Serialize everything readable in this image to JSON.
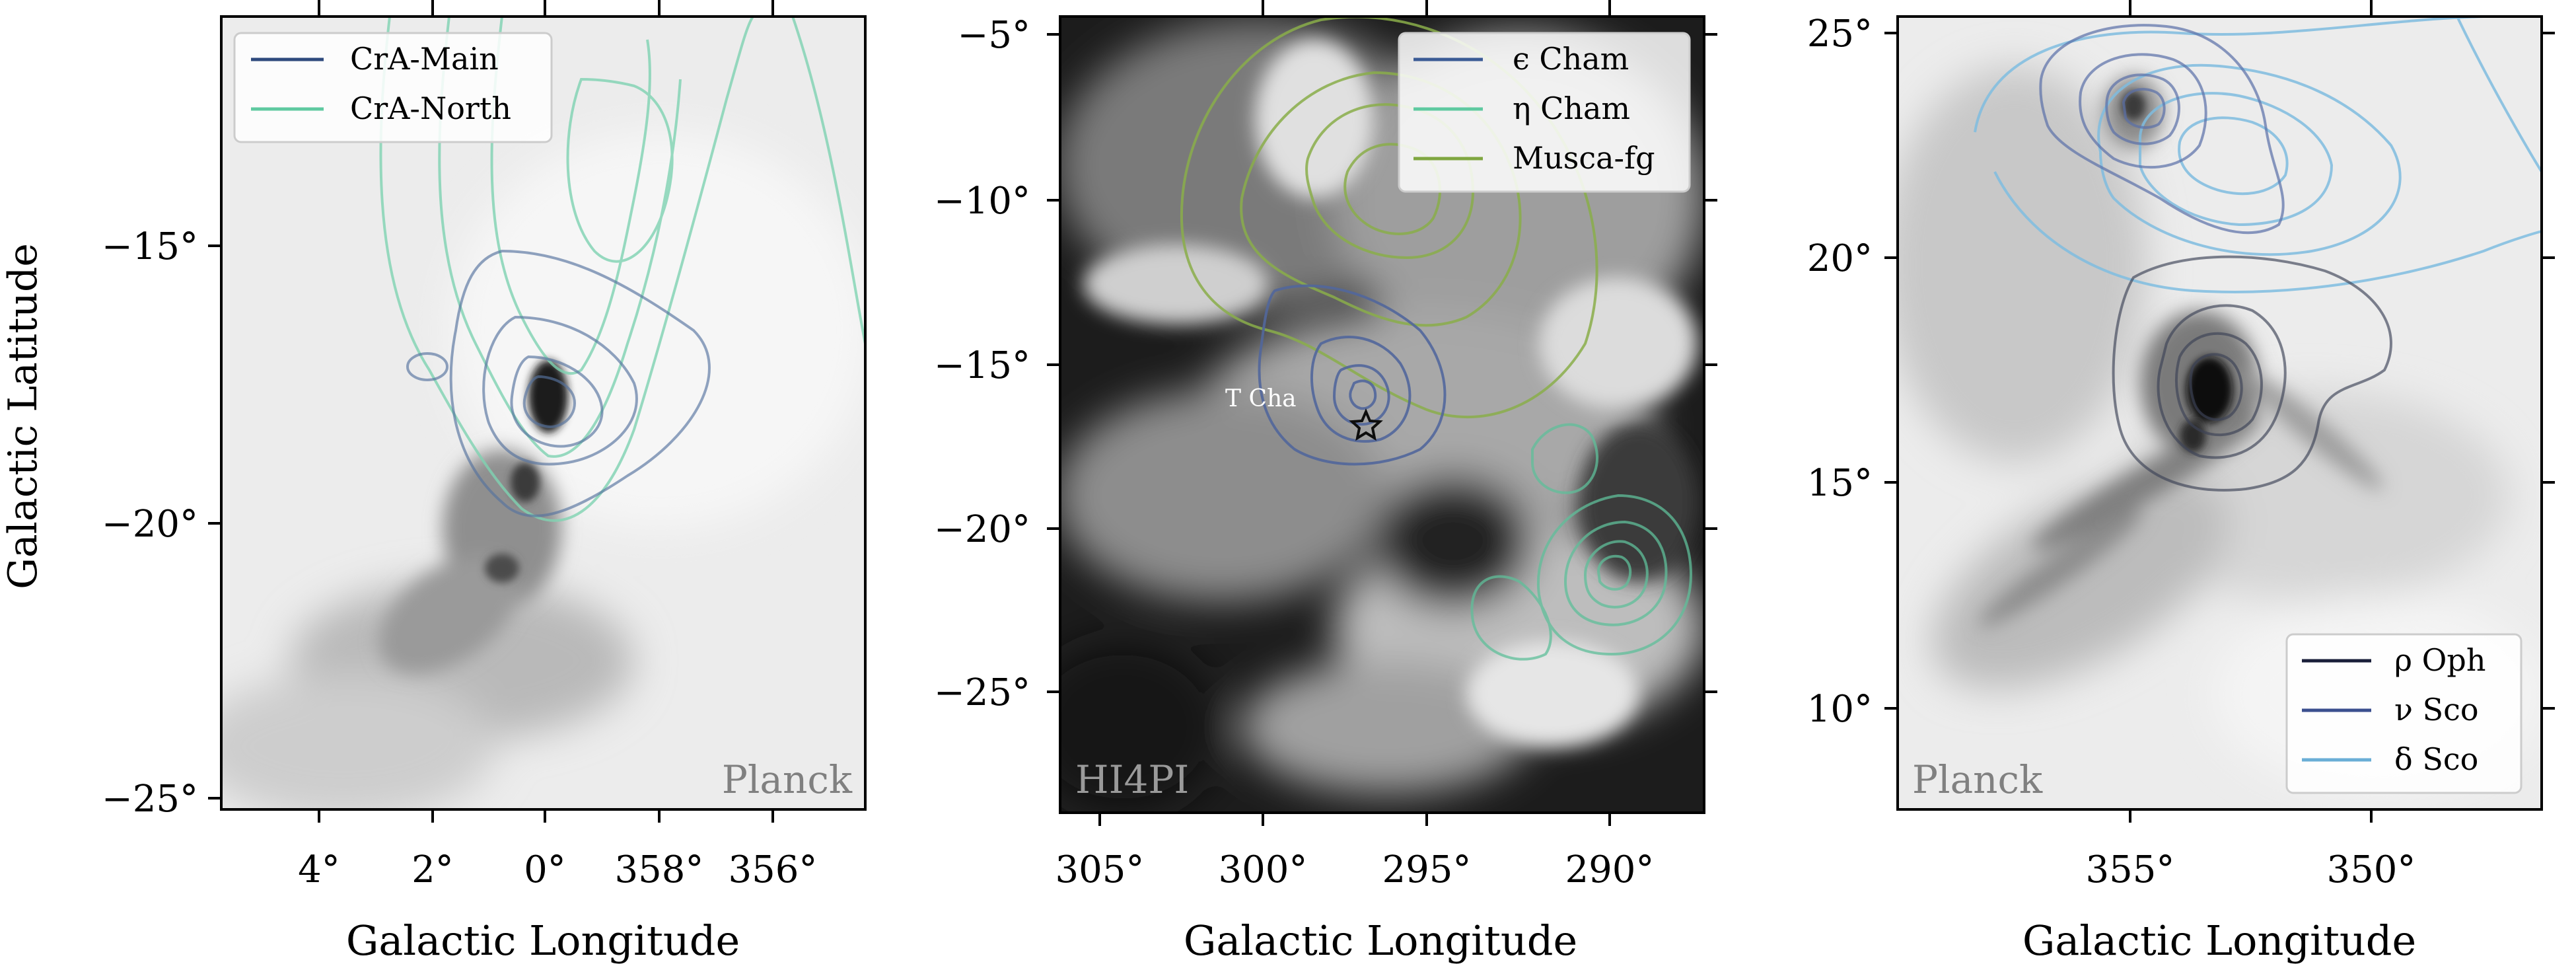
{
  "figure": {
    "y_axis_label": "Galactic Latitude",
    "panels": [
      {
        "xlabel": "Galactic Longitude",
        "x_ticks": [
          "4°",
          "2°",
          "0°",
          "358°",
          "356°"
        ],
        "y_ticks": [
          "−15°",
          "−20°",
          "−25°"
        ],
        "map_label": "Planck",
        "background": "planck-dust-light",
        "legend": [
          {
            "label": "CrA-Main",
            "color": "#2e4a7d"
          },
          {
            "label": "CrA-North",
            "color": "#5ec9a0"
          }
        ]
      },
      {
        "xlabel": "Galactic Longitude",
        "x_ticks": [
          "305°",
          "300°",
          "295°",
          "290°"
        ],
        "y_ticks": [
          "−5°",
          "−10°",
          "−15°",
          "−20°",
          "−25°"
        ],
        "map_label": "HI4PI",
        "background": "hi4pi-dark",
        "annotation": "T Cha",
        "legend": [
          {
            "label": "ϵ Cham",
            "color": "#3b5b95"
          },
          {
            "label": "η Cham",
            "color": "#5ec9a0"
          },
          {
            "label": "Musca-fg",
            "color": "#7fa640"
          }
        ]
      },
      {
        "xlabel": "Galactic Longitude",
        "x_ticks": [
          "355°",
          "350°"
        ],
        "y_ticks": [
          "25°",
          "20°",
          "15°",
          "10°"
        ],
        "map_label": "Planck",
        "background": "planck-dust-light",
        "legend": [
          {
            "label": "ρ Oph",
            "color": "#1a1f3a"
          },
          {
            "label": "ν Sco",
            "color": "#3b4f8f"
          },
          {
            "label": "δ Sco",
            "color": "#6aaed6"
          }
        ]
      }
    ]
  }
}
